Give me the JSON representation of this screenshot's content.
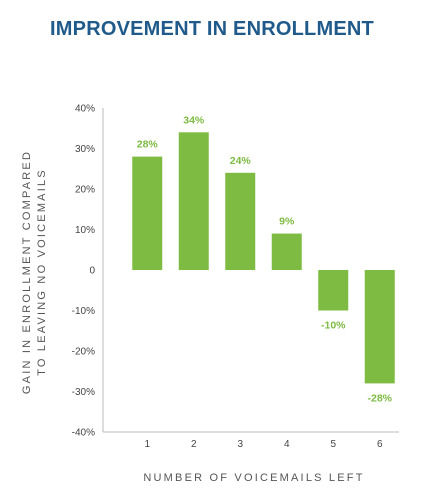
{
  "chart_data": {
    "type": "bar",
    "title": "IMPROVEMENT IN ENROLLMENT",
    "xlabel": "NUMBER OF VOICEMAILS LEFT",
    "ylabel_lines": [
      "GAIN IN ENROLLMENT COMPARED",
      "TO LEAVING NO VOICEMAILS"
    ],
    "categories": [
      "1",
      "2",
      "3",
      "4",
      "5",
      "6"
    ],
    "values": [
      28,
      34,
      24,
      9,
      -10,
      -28
    ],
    "value_labels": [
      "28%",
      "34%",
      "24%",
      "9%",
      "-10%",
      "-28%"
    ],
    "y_ticks": [
      40,
      30,
      20,
      10,
      0,
      -10,
      -20,
      -30,
      -40
    ],
    "y_tick_labels": [
      "40%",
      "30%",
      "20%",
      "10%",
      "0",
      "-10%",
      "-20%",
      "-30%",
      "-40%"
    ],
    "ylim": [
      -40,
      40
    ],
    "grid": false,
    "legend": "none",
    "colors": {
      "bar": "#7dbb42",
      "title": "#1f5a8a",
      "axis": "#bbbbbb"
    }
  }
}
